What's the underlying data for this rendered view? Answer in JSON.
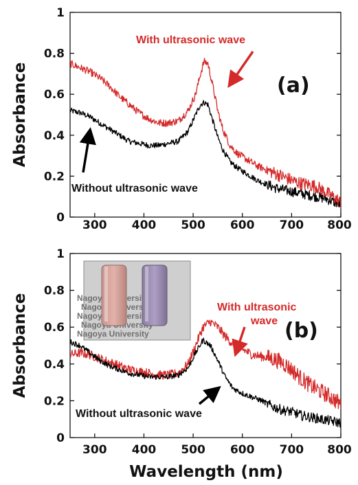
{
  "colors": {
    "with_wave": "#d42a2a",
    "without_wave": "#000000",
    "axis": "#000000"
  },
  "chart_data": [
    {
      "panel": "(a)",
      "type": "line",
      "xlabel": "",
      "ylabel": "Absorbance",
      "xlim": [
        250,
        800
      ],
      "ylim": [
        0,
        1
      ],
      "xticks": [
        "300",
        "400",
        "500",
        "600",
        "700",
        "800"
      ],
      "yticks": [
        "0",
        "0.2",
        "0.4",
        "0.6",
        "0.8",
        "1"
      ],
      "annotations": {
        "with": [
          "With ultrasonic wave"
        ],
        "without": [
          "Without ultrasonic wave"
        ]
      },
      "series": [
        {
          "key": "with",
          "color": "#d42a2a",
          "noise": 0.018,
          "x": [
            250,
            270,
            290,
            310,
            330,
            350,
            370,
            390,
            410,
            430,
            450,
            470,
            490,
            505,
            515,
            522,
            530,
            540,
            550,
            560,
            575,
            590,
            610,
            630,
            650,
            670,
            690,
            710,
            730,
            750,
            770,
            790,
            800
          ],
          "y": [
            0.75,
            0.73,
            0.71,
            0.68,
            0.64,
            0.59,
            0.55,
            0.51,
            0.48,
            0.46,
            0.46,
            0.47,
            0.52,
            0.6,
            0.7,
            0.76,
            0.75,
            0.64,
            0.52,
            0.43,
            0.35,
            0.31,
            0.28,
            0.25,
            0.23,
            0.21,
            0.19,
            0.17,
            0.16,
            0.15,
            0.12,
            0.09,
            0.07
          ]
        },
        {
          "key": "without",
          "color": "#000000",
          "noise": 0.014,
          "x": [
            250,
            270,
            290,
            310,
            330,
            350,
            370,
            390,
            410,
            430,
            450,
            470,
            490,
            505,
            515,
            522,
            530,
            540,
            550,
            560,
            575,
            590,
            610,
            630,
            650,
            670,
            690,
            710,
            730,
            750,
            770,
            790,
            800
          ],
          "y": [
            0.52,
            0.51,
            0.49,
            0.46,
            0.43,
            0.4,
            0.37,
            0.36,
            0.35,
            0.35,
            0.36,
            0.37,
            0.42,
            0.5,
            0.55,
            0.56,
            0.55,
            0.47,
            0.39,
            0.33,
            0.27,
            0.24,
            0.21,
            0.18,
            0.16,
            0.14,
            0.13,
            0.12,
            0.11,
            0.1,
            0.09,
            0.07,
            0.06
          ]
        }
      ]
    },
    {
      "panel": "(b)",
      "type": "line",
      "xlabel": "Wavelength (nm)",
      "ylabel": "Absorbance",
      "xlim": [
        250,
        800
      ],
      "ylim": [
        0,
        1
      ],
      "xticks": [
        "300",
        "400",
        "500",
        "600",
        "700",
        "800"
      ],
      "yticks": [
        "0",
        "0.2",
        "0.4",
        "0.6",
        "0.8",
        "1"
      ],
      "annotations": {
        "with": [
          "With ultrasonic",
          "wave"
        ],
        "without": [
          "Without ultrasonic wave"
        ]
      },
      "inset_photo": {
        "lines": [
          "Nagoya University",
          "Nagoya University",
          "Nagoya University",
          "Nagoya University",
          "Nagoya University"
        ]
      },
      "series": [
        {
          "key": "with",
          "color": "#d42a2a",
          "noise": 0.025,
          "x": [
            250,
            270,
            290,
            310,
            330,
            350,
            370,
            390,
            410,
            430,
            450,
            470,
            490,
            505,
            520,
            535,
            550,
            565,
            580,
            600,
            620,
            640,
            660,
            680,
            700,
            720,
            740,
            760,
            780,
            800
          ],
          "y": [
            0.45,
            0.46,
            0.45,
            0.43,
            0.41,
            0.39,
            0.37,
            0.36,
            0.35,
            0.34,
            0.34,
            0.35,
            0.4,
            0.5,
            0.6,
            0.63,
            0.6,
            0.55,
            0.51,
            0.48,
            0.45,
            0.44,
            0.43,
            0.41,
            0.37,
            0.32,
            0.28,
            0.25,
            0.22,
            0.18
          ]
        },
        {
          "key": "without",
          "color": "#000000",
          "noise": 0.015,
          "x": [
            250,
            270,
            290,
            310,
            330,
            350,
            370,
            390,
            410,
            430,
            450,
            470,
            490,
            505,
            520,
            535,
            550,
            565,
            580,
            600,
            620,
            640,
            660,
            680,
            700,
            720,
            740,
            760,
            780,
            800
          ],
          "y": [
            0.52,
            0.5,
            0.46,
            0.42,
            0.39,
            0.37,
            0.35,
            0.34,
            0.33,
            0.33,
            0.33,
            0.34,
            0.38,
            0.46,
            0.53,
            0.5,
            0.42,
            0.33,
            0.27,
            0.24,
            0.22,
            0.2,
            0.17,
            0.15,
            0.14,
            0.12,
            0.11,
            0.1,
            0.09,
            0.08
          ]
        }
      ]
    }
  ]
}
